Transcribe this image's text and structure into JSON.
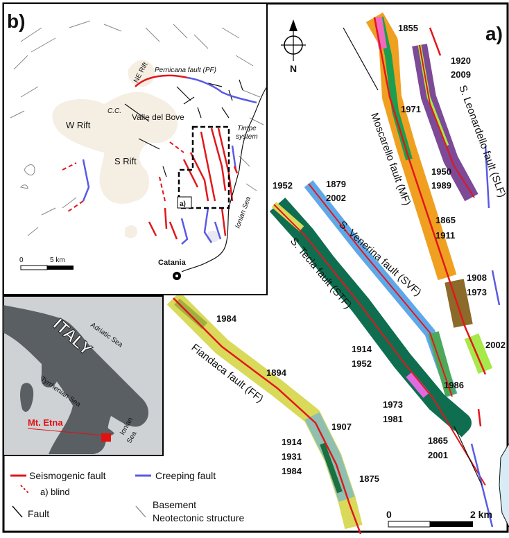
{
  "panel_a": {
    "label": "a)",
    "north": "N",
    "scale": {
      "start": "0",
      "end": "2 km"
    },
    "faults": {
      "moscarello": {
        "name": "Moscarello fault (MF)",
        "years": [
          "1855",
          "1971",
          "1865",
          "1911",
          "1908",
          "1973"
        ]
      },
      "leonardello": {
        "name": "S. Leonardello fault (SLF)",
        "years": [
          "1920",
          "2009",
          "1950",
          "1989"
        ]
      },
      "venerina": {
        "name": "S. Venerina fault (SVF)",
        "years": [
          "1879",
          "2002",
          "1986",
          "1865",
          "2001"
        ]
      },
      "tecla": {
        "name": "S. Tecla fault (STF)",
        "years": [
          "1952",
          "1914",
          "1952",
          "1973",
          "1981"
        ]
      },
      "fiandaca": {
        "name": "Fiandaca fault (FF)",
        "years": [
          "1984",
          "1894",
          "1907",
          "1914",
          "1931",
          "1984",
          "1875"
        ]
      },
      "extra": {
        "years": [
          "2002"
        ]
      }
    }
  },
  "panel_b": {
    "label": "b)",
    "places": [
      "NE Rift",
      "Pernicana fault (PF)",
      "C.C.",
      "Valle del Bove",
      "W Rift",
      "S Rift",
      "Timpe",
      "system",
      "Ionian Sea",
      "a)",
      "Catania"
    ],
    "scale": {
      "start": "0",
      "end": "5 km"
    }
  },
  "inset": {
    "country": "ITALY",
    "seas": [
      "Adriatic Sea",
      "Tyrrhenian Sea",
      "Ionian",
      "Sea"
    ],
    "volcano": "Mt. Etna"
  },
  "legend": {
    "seismogenic": "Seismogenic fault",
    "blind": "a) blind",
    "creeping": "Creeping fault",
    "fault": "Fault",
    "basement": [
      "Basement",
      "Neotectonic structure"
    ]
  },
  "colors": {
    "seismogenic": "#e3161b",
    "creeping": "#5a5ae6",
    "rift": "#f5eee2",
    "moscarello": "#f0a020",
    "leonardello": "#7c4a96",
    "venerina": "#5fa8e8",
    "tecla": "#0f6e50",
    "fiandaca": "#d9d95a",
    "etna_marker": "#e31010"
  }
}
